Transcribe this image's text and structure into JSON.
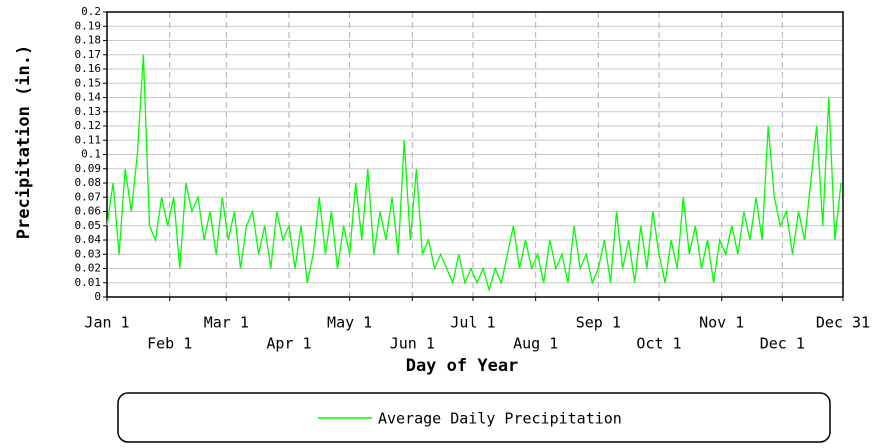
{
  "chart_data": {
    "type": "line",
    "xlabel": "Day of Year",
    "ylabel": "Precipitation (in.)",
    "x": [
      1,
      4,
      7,
      10,
      13,
      16,
      19,
      22,
      25,
      28,
      31,
      34,
      37,
      40,
      43,
      46,
      49,
      52,
      55,
      58,
      61,
      64,
      67,
      70,
      73,
      76,
      79,
      82,
      85,
      88,
      91,
      94,
      97,
      100,
      103,
      106,
      109,
      112,
      115,
      118,
      121,
      124,
      127,
      130,
      133,
      136,
      139,
      142,
      145,
      148,
      151,
      154,
      157,
      160,
      163,
      166,
      169,
      172,
      175,
      178,
      181,
      184,
      187,
      190,
      193,
      196,
      199,
      202,
      205,
      208,
      211,
      214,
      217,
      220,
      223,
      226,
      229,
      232,
      235,
      238,
      241,
      244,
      247,
      250,
      253,
      256,
      259,
      262,
      265,
      268,
      271,
      274,
      277,
      280,
      283,
      286,
      289,
      292,
      295,
      298,
      301,
      304,
      307,
      310,
      313,
      316,
      319,
      322,
      325,
      328,
      331,
      334,
      337,
      340,
      343,
      346,
      349,
      352,
      355,
      358,
      361,
      364
    ],
    "series": [
      {
        "name": "Average Daily Precipitation",
        "color": "#00ff00",
        "values": [
          0.05,
          0.08,
          0.03,
          0.09,
          0.06,
          0.1,
          0.17,
          0.05,
          0.04,
          0.07,
          0.05,
          0.07,
          0.02,
          0.08,
          0.06,
          0.07,
          0.04,
          0.06,
          0.03,
          0.07,
          0.04,
          0.06,
          0.02,
          0.05,
          0.06,
          0.03,
          0.05,
          0.02,
          0.06,
          0.04,
          0.05,
          0.02,
          0.05,
          0.01,
          0.03,
          0.07,
          0.03,
          0.06,
          0.02,
          0.05,
          0.03,
          0.08,
          0.04,
          0.09,
          0.03,
          0.06,
          0.04,
          0.07,
          0.03,
          0.11,
          0.04,
          0.09,
          0.03,
          0.04,
          0.02,
          0.03,
          0.02,
          0.01,
          0.03,
          0.01,
          0.02,
          0.01,
          0.02,
          0.005,
          0.02,
          0.01,
          0.03,
          0.05,
          0.02,
          0.04,
          0.02,
          0.03,
          0.01,
          0.04,
          0.02,
          0.03,
          0.01,
          0.05,
          0.02,
          0.03,
          0.01,
          0.02,
          0.04,
          0.01,
          0.06,
          0.02,
          0.04,
          0.01,
          0.05,
          0.02,
          0.06,
          0.03,
          0.01,
          0.04,
          0.02,
          0.07,
          0.03,
          0.05,
          0.02,
          0.04,
          0.01,
          0.04,
          0.03,
          0.05,
          0.03,
          0.06,
          0.04,
          0.07,
          0.04,
          0.12,
          0.07,
          0.05,
          0.06,
          0.03,
          0.06,
          0.04,
          0.08,
          0.12,
          0.05,
          0.14,
          0.04,
          0.08
        ]
      }
    ],
    "xlim": [
      1,
      365
    ],
    "xticks": [
      {
        "value": 1,
        "label": "Jan 1"
      },
      {
        "value": 32,
        "label": "Feb 1"
      },
      {
        "value": 60,
        "label": "Mar 1"
      },
      {
        "value": 91,
        "label": "Apr 1"
      },
      {
        "value": 121,
        "label": "May 1"
      },
      {
        "value": 152,
        "label": "Jun 1"
      },
      {
        "value": 182,
        "label": "Jul 1"
      },
      {
        "value": 213,
        "label": "Aug 1"
      },
      {
        "value": 244,
        "label": "Sep 1"
      },
      {
        "value": 274,
        "label": "Oct 1"
      },
      {
        "value": 305,
        "label": "Nov 1"
      },
      {
        "value": 335,
        "label": "Dec 1"
      },
      {
        "value": 365,
        "label": "Dec 31"
      }
    ],
    "ylim": [
      0,
      0.2
    ],
    "yticks": [
      0,
      0.01,
      0.02,
      0.03,
      0.04,
      0.05,
      0.06,
      0.07,
      0.08,
      0.09,
      0.1,
      0.11,
      0.12,
      0.13,
      0.14,
      0.15,
      0.16,
      0.17,
      0.18,
      0.19,
      0.2
    ],
    "grid": true
  }
}
